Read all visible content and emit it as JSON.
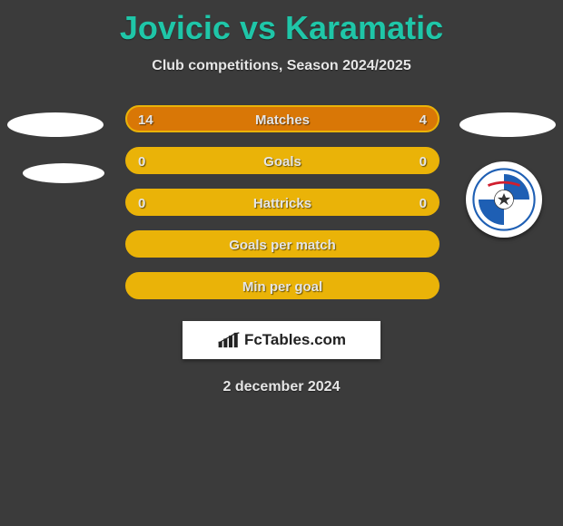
{
  "title": "Jovicic vs Karamatic",
  "subtitle": "Club competitions, Season 2024/2025",
  "date": "2 december 2024",
  "brand": "FcTables.com",
  "colors": {
    "background": "#3b3b3b",
    "title": "#1fc6a8",
    "bar_border": "#eab308",
    "bar_track": "#eab308",
    "bar_fill": "#d97706",
    "text": "#e6e6e6"
  },
  "chart": {
    "type": "comparison-bars",
    "rows": [
      {
        "label": "Matches",
        "left": "14",
        "right": "4",
        "left_pct": 74,
        "right_pct": 26
      },
      {
        "label": "Goals",
        "left": "0",
        "right": "0",
        "left_pct": 0,
        "right_pct": 0
      },
      {
        "label": "Hattricks",
        "left": "0",
        "right": "0",
        "left_pct": 0,
        "right_pct": 0
      },
      {
        "label": "Goals per match",
        "left": "",
        "right": "",
        "left_pct": 0,
        "right_pct": 0
      },
      {
        "label": "Min per goal",
        "left": "",
        "right": "",
        "left_pct": 0,
        "right_pct": 0
      }
    ]
  },
  "badges": {
    "right_club": "TSV Hartberg",
    "right_club_colors": {
      "primary": "#1e5fb4",
      "secondary": "#ffffff",
      "accent": "#d01e2e"
    }
  }
}
